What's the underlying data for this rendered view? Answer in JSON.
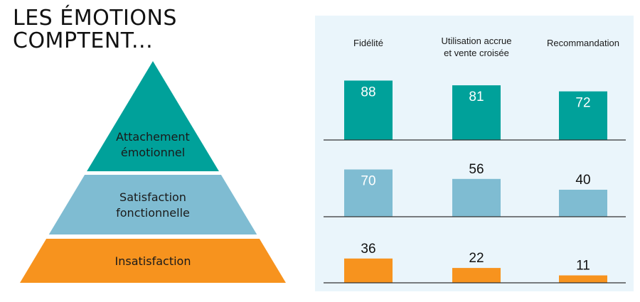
{
  "title": {
    "line1": "LES ÉMOTIONS",
    "line2": "COMPTENT..."
  },
  "colors": {
    "teal": "#00A19A",
    "light_blue": "#7FBCD2",
    "orange": "#F7931E",
    "panel_bg": "#EAF5FB",
    "baseline": "#333333"
  },
  "pyramid": {
    "levels": [
      {
        "lines": [
          "Attachement",
          "émotionnel"
        ],
        "color_key": "teal"
      },
      {
        "lines": [
          "Satisfaction",
          "fonctionnelle"
        ],
        "color_key": "light_blue"
      },
      {
        "lines": [
          "Insatisfaction"
        ],
        "color_key": "orange"
      }
    ]
  },
  "chart_data": {
    "type": "bar",
    "categories": [
      {
        "lines": [
          "Fidélité"
        ]
      },
      {
        "lines": [
          "Utilisation accrue",
          "et vente croisée"
        ]
      },
      {
        "lines": [
          "Recommandation"
        ]
      }
    ],
    "series": [
      {
        "name": "Attachement émotionnel",
        "color_key": "teal",
        "values": [
          88,
          81,
          72
        ]
      },
      {
        "name": "Satisfaction fonctionnelle",
        "color_key": "light_blue",
        "values": [
          70,
          56,
          40
        ]
      },
      {
        "name": "Insatisfaction",
        "color_key": "orange",
        "values": [
          36,
          22,
          11
        ]
      }
    ],
    "ylim": [
      0,
      100
    ],
    "grid": false,
    "legend": "none"
  }
}
